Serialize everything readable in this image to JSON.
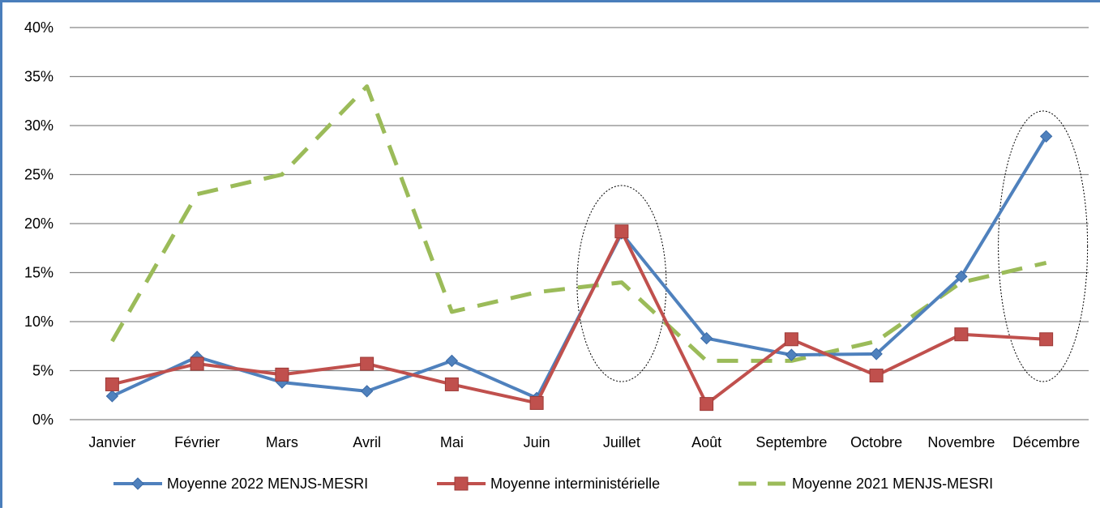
{
  "chart_data": {
    "type": "line",
    "categories": [
      "Janvier",
      "Février",
      "Mars",
      "Avril",
      "Mai",
      "Juin",
      "Juillet",
      "Août",
      "Septembre",
      "Octobre",
      "Novembre",
      "Décembre"
    ],
    "y_ticks": [
      "0%",
      "5%",
      "10%",
      "15%",
      "20%",
      "25%",
      "30%",
      "35%",
      "40%"
    ],
    "ylim": [
      0,
      40
    ],
    "y_unit": "%",
    "grid": "horizontal",
    "legend_position": "bottom",
    "series": [
      {
        "name": "Moyenne 2022 MENJS-MESRI",
        "values": [
          2.4,
          6.4,
          3.8,
          2.9,
          6.0,
          2.2,
          19.0,
          8.3,
          6.6,
          6.7,
          14.6,
          28.9
        ],
        "color": "#4f81bd",
        "marker": "diamond",
        "line_style": "solid"
      },
      {
        "name": "Moyenne interministérielle",
        "values": [
          3.6,
          5.7,
          4.6,
          5.7,
          3.6,
          1.7,
          19.2,
          1.6,
          8.2,
          4.5,
          8.7,
          8.2
        ],
        "color": "#c0504d",
        "marker": "square",
        "line_style": "solid"
      },
      {
        "name": "Moyenne 2021 MENJS-MESRI",
        "values": [
          8.0,
          23.0,
          25.0,
          34.0,
          11.0,
          13.0,
          14.0,
          6.0,
          6.0,
          8.0,
          14.0,
          16.0
        ],
        "color": "#9bbb59",
        "marker": "none",
        "line_style": "dashed"
      }
    ],
    "annotations": [
      {
        "shape": "dotted-ellipse",
        "around": "Juillet"
      },
      {
        "shape": "dotted-ellipse",
        "around": "Décembre"
      }
    ]
  }
}
